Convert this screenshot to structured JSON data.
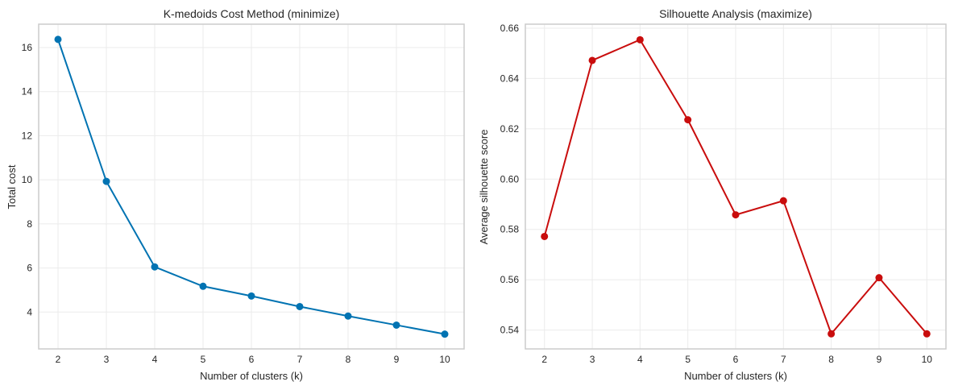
{
  "chart_data": [
    {
      "type": "line",
      "title": "K-medoids Cost Method (minimize)",
      "xlabel": "Number of clusters (k)",
      "ylabel": "Total cost",
      "x": [
        2,
        3,
        4,
        5,
        6,
        7,
        8,
        9,
        10
      ],
      "series": [
        {
          "name": "Total cost",
          "color": "#0173b2",
          "marker": "circle",
          "values": [
            16.37,
            9.93,
            6.05,
            5.17,
            4.73,
            4.25,
            3.82,
            3.41,
            3.0
          ]
        }
      ],
      "xticks": [
        2,
        3,
        4,
        5,
        6,
        7,
        8,
        9,
        10
      ],
      "xtick_labels": [
        "2",
        "3",
        "4",
        "5",
        "6",
        "7",
        "8",
        "9",
        "10"
      ],
      "yticks": [
        4,
        6,
        8,
        10,
        12,
        14,
        16
      ],
      "ytick_labels": [
        "4",
        "6",
        "8",
        "10",
        "12",
        "14",
        "16"
      ],
      "xlim": [
        1.6,
        10.4
      ],
      "ylim": [
        2.33,
        17.06
      ],
      "grid": true,
      "legend": "none"
    },
    {
      "type": "line",
      "title": "Silhouette Analysis (maximize)",
      "xlabel": "Number of clusters (k)",
      "ylabel": "Average silhouette score",
      "x": [
        2,
        3,
        4,
        5,
        6,
        7,
        8,
        9,
        10
      ],
      "series": [
        {
          "name": "Average silhouette score",
          "color": "#c90d0d",
          "marker": "circle",
          "values": [
            0.5772,
            0.6472,
            0.6554,
            0.6236,
            0.5858,
            0.5914,
            0.5385,
            0.5608,
            0.5385
          ]
        }
      ],
      "xticks": [
        2,
        3,
        4,
        5,
        6,
        7,
        8,
        9,
        10
      ],
      "xtick_labels": [
        "2",
        "3",
        "4",
        "5",
        "6",
        "7",
        "8",
        "9",
        "10"
      ],
      "yticks": [
        0.54,
        0.56,
        0.58,
        0.6,
        0.62,
        0.64,
        0.66
      ],
      "ytick_labels": [
        "0.54",
        "0.56",
        "0.58",
        "0.60",
        "0.62",
        "0.64",
        "0.66"
      ],
      "xlim": [
        1.6,
        10.4
      ],
      "ylim": [
        0.5325,
        0.6616
      ],
      "grid": true,
      "legend": "none"
    }
  ]
}
